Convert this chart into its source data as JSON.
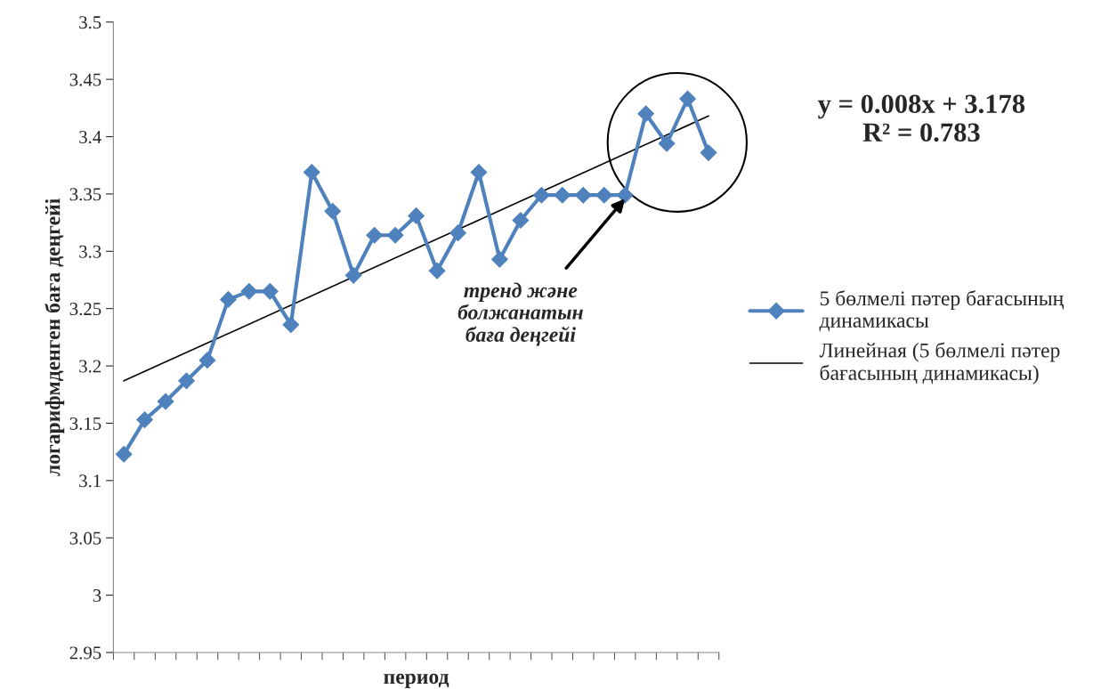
{
  "chart_data": {
    "type": "line",
    "xlabel": "период",
    "ylabel": "логарифмденген баға деңгейі",
    "categories": [
      null,
      null,
      null,
      null,
      null,
      null,
      null,
      null,
      null,
      null,
      null,
      null,
      null,
      null,
      null,
      null,
      null,
      null,
      null,
      null,
      null,
      null,
      null,
      null,
      null,
      null,
      null,
      null,
      null
    ],
    "series": [
      {
        "name": "5 бөлмелі пәтер бағасының динамикасы",
        "color": "#4f81bd",
        "marker": "diamond",
        "values": [
          3.123,
          3.153,
          3.169,
          3.187,
          3.205,
          3.258,
          3.265,
          3.265,
          3.236,
          3.369,
          3.335,
          3.279,
          3.314,
          3.314,
          3.331,
          3.283,
          3.316,
          3.369,
          3.293,
          3.327,
          3.349,
          3.349,
          3.349,
          3.349,
          3.349,
          3.42,
          3.394,
          3.433,
          3.386
        ]
      },
      {
        "name": "Линейная (5 бөлмелі пәтер бағасының динамикасы)",
        "color": "#000000",
        "marker": "none",
        "values": [
          3.187,
          null,
          null,
          null,
          null,
          null,
          null,
          null,
          null,
          null,
          null,
          null,
          null,
          null,
          null,
          null,
          null,
          null,
          null,
          null,
          null,
          null,
          null,
          null,
          null,
          null,
          null,
          null,
          3.418
        ]
      }
    ],
    "ylim": [
      2.95,
      3.5
    ],
    "yticks": [
      2.95,
      3,
      3.05,
      3.1,
      3.15,
      3.2,
      3.25,
      3.3,
      3.35,
      3.4,
      3.45,
      3.5
    ],
    "grid": false,
    "legend": "right",
    "annotations": [
      "y = 0.008x + 3.178\nR² = 0.783",
      "тренд және\nболжанатын\nбаға деңгейі"
    ]
  }
}
